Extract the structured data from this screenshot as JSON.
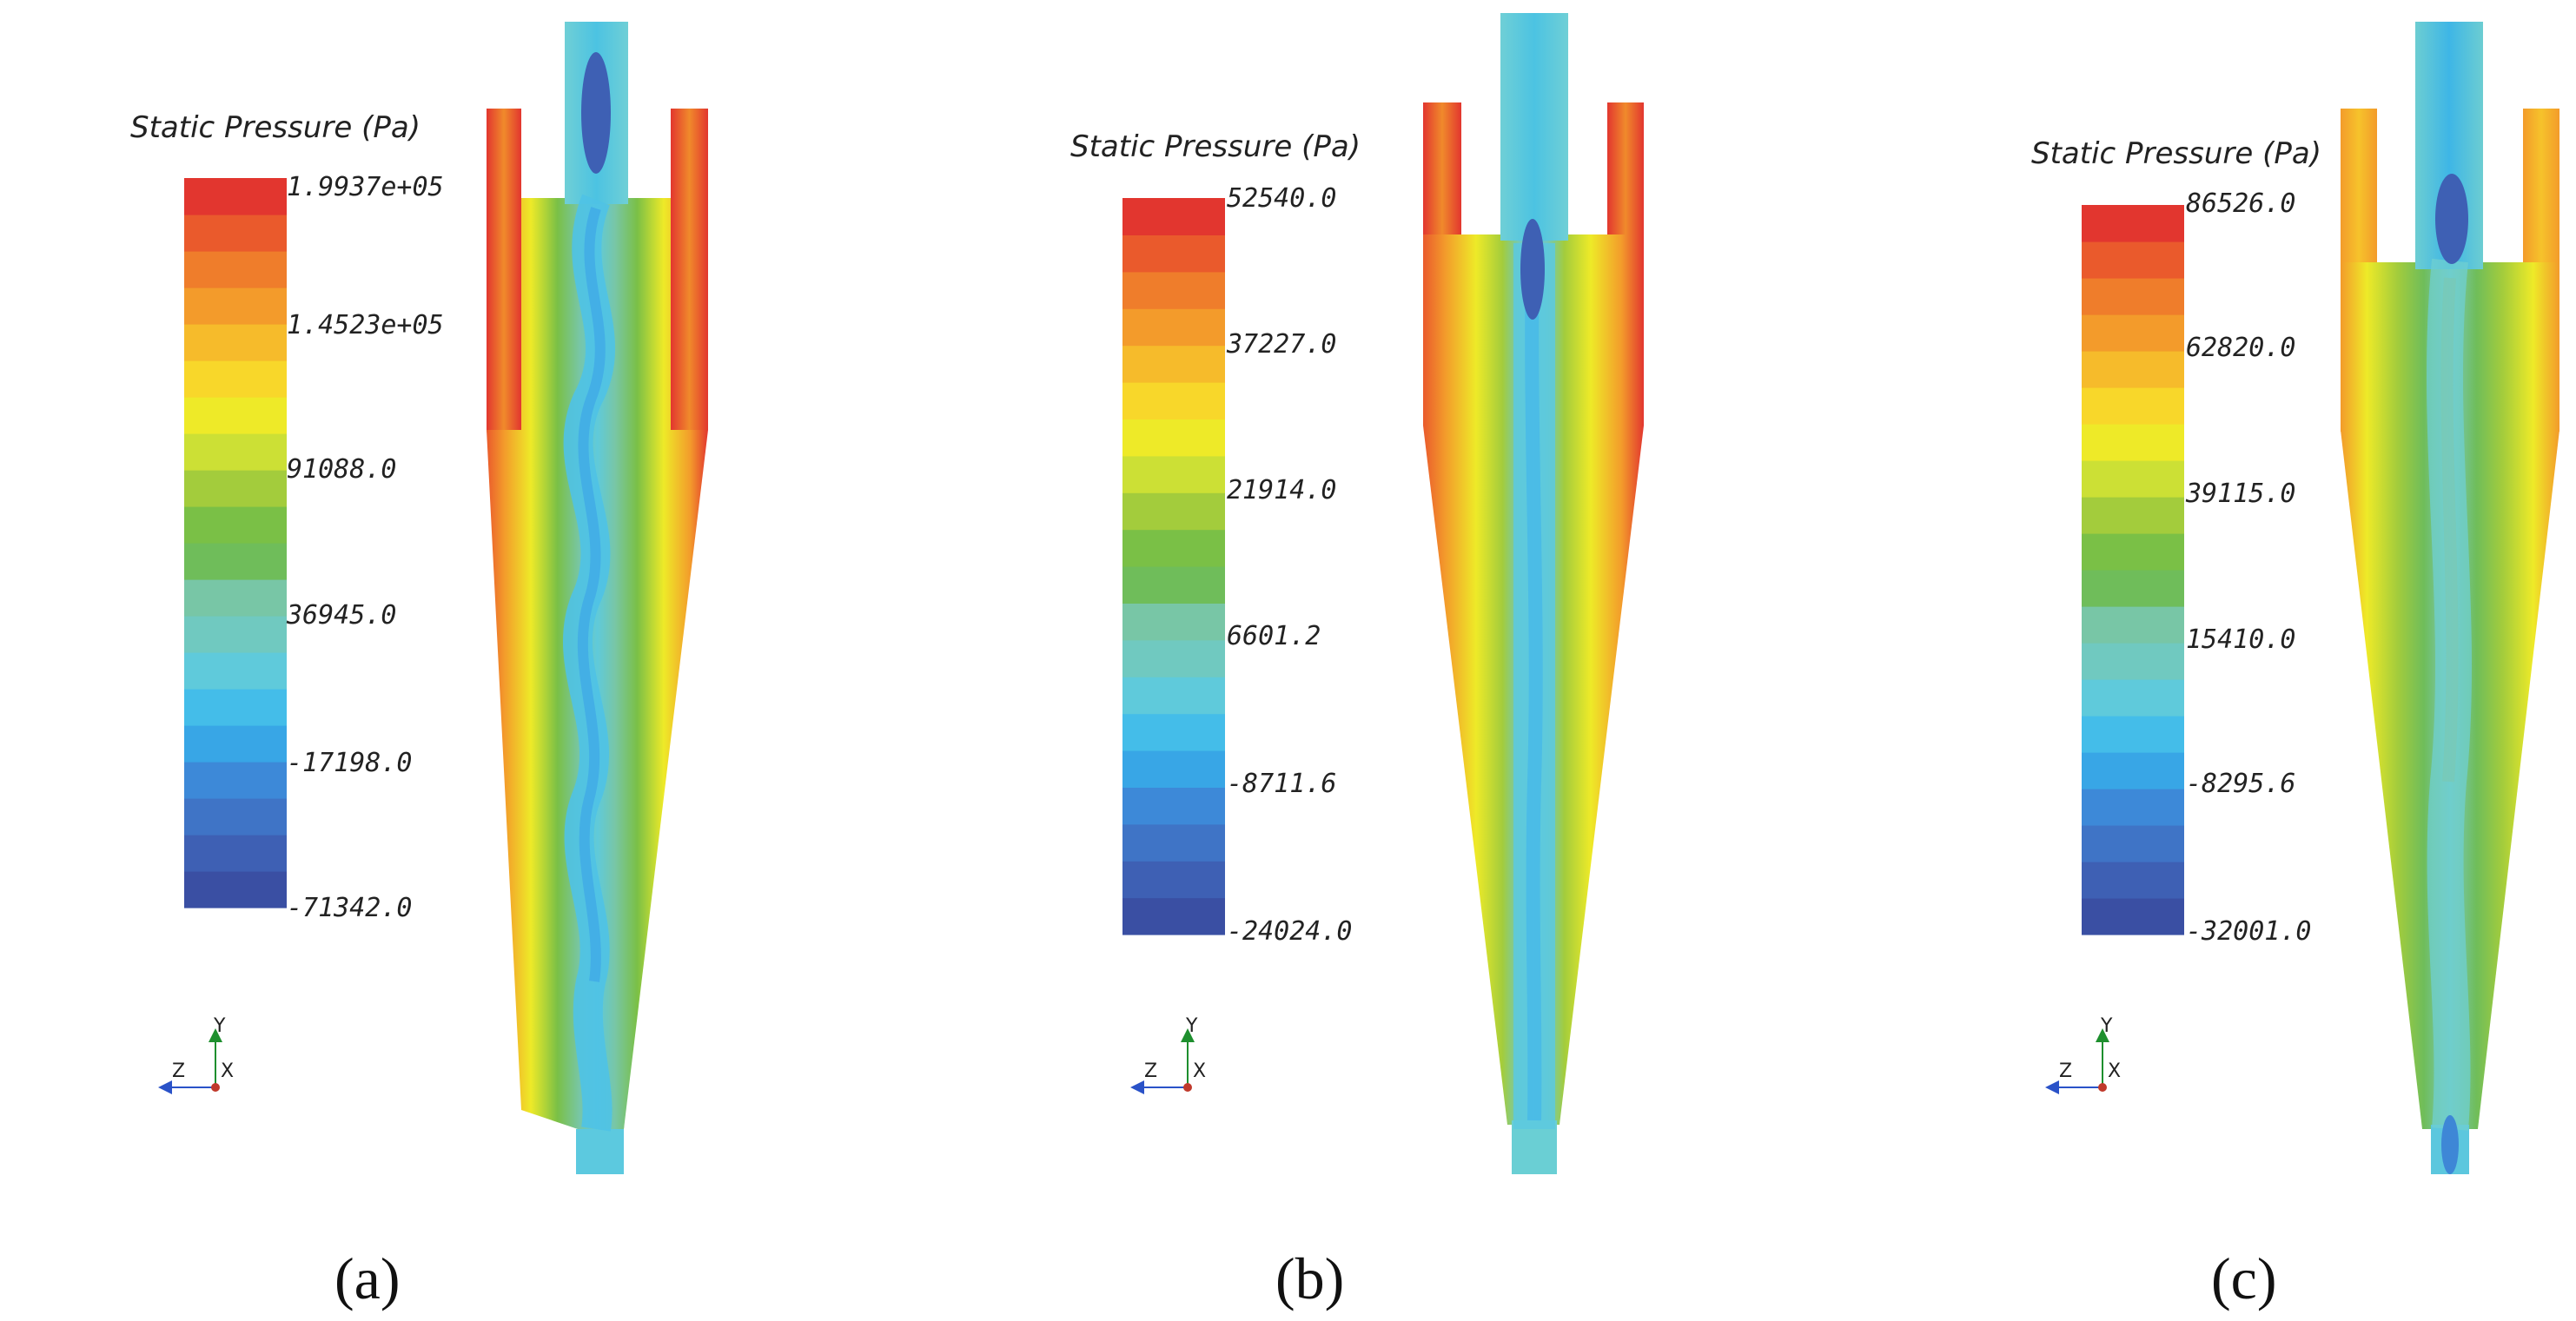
{
  "panels": [
    {
      "id": "a",
      "caption": "(a)",
      "legend_title": "Static Pressure (Pa)",
      "ticks": [
        "1.9937e+05",
        "1.4523e+05",
        "91088.0",
        "36945.0",
        "-17198.0",
        "-71342.0"
      ],
      "axes": {
        "y": "Y",
        "z": "Z",
        "x": "X"
      },
      "field": "wavy-core"
    },
    {
      "id": "b",
      "caption": "(b)",
      "legend_title": "Static Pressure (Pa)",
      "ticks": [
        "52540.0",
        "37227.0",
        "21914.0",
        "6601.2",
        "-8711.6",
        "-24024.0"
      ],
      "axes": {
        "y": "Y",
        "z": "Z",
        "x": "X"
      },
      "field": "straight-core"
    },
    {
      "id": "c",
      "caption": "(c)",
      "legend_title": "Static Pressure (Pa)",
      "ticks": [
        "86526.0",
        "62820.0",
        "39115.0",
        "15410.0",
        "-8295.6",
        "-32001.0"
      ],
      "axes": {
        "y": "Y",
        "z": "Z",
        "x": "X"
      },
      "field": "wide-green"
    }
  ],
  "colormap": [
    "#3a4fa3",
    "#3e60b4",
    "#3f74c6",
    "#3d89d8",
    "#38a6e6",
    "#44bde9",
    "#5fcadb",
    "#70c9c0",
    "#78c6a6",
    "#6fbd5a",
    "#7ac046",
    "#a3cc3c",
    "#cce035",
    "#eeea28",
    "#f8d72a",
    "#f6bb2b",
    "#f39b2b",
    "#ef7d2b",
    "#ea5a2c",
    "#e2362f"
  ]
}
